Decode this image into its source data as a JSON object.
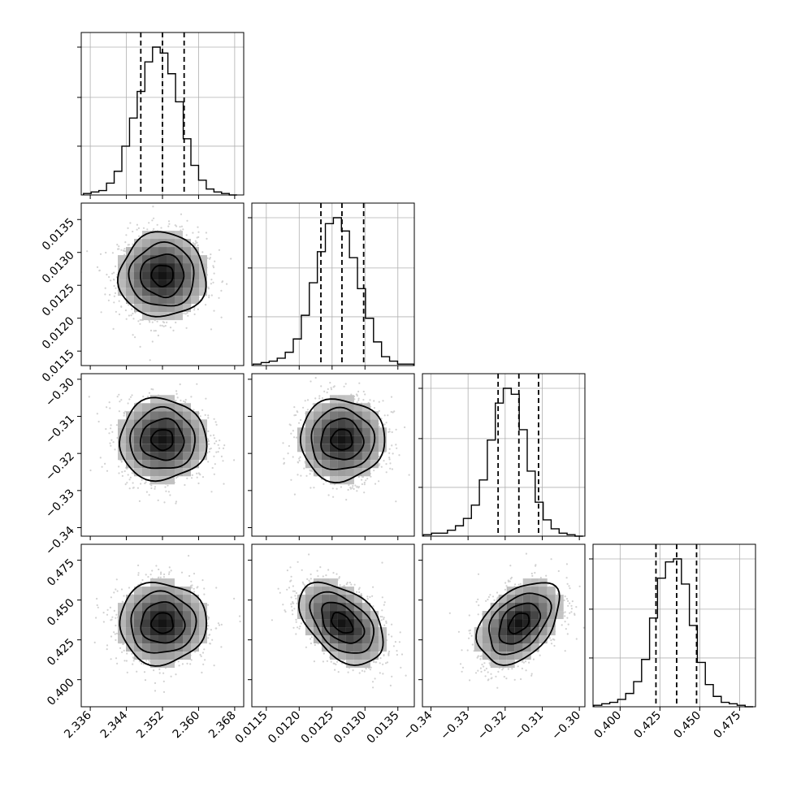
{
  "chart_data": {
    "type": "corner",
    "n_params": 4,
    "parameters": [
      {
        "range": [
          2.334,
          2.37
        ],
        "ticks": [
          "2.336",
          "2.344",
          "2.352",
          "2.360",
          "2.368"
        ],
        "tick_values": [
          2.336,
          2.344,
          2.352,
          2.36,
          2.368
        ],
        "quantiles": [
          2.3472,
          2.352,
          2.3568
        ],
        "median": 2.352,
        "sigma": 0.0048
      },
      {
        "range": [
          0.01128,
          0.01375
        ],
        "ticks": [
          "0.0115",
          "0.0120",
          "0.0125",
          "0.0130",
          "0.0135"
        ],
        "tick_values": [
          0.0115,
          0.012,
          0.0125,
          0.013,
          0.0135
        ],
        "quantiles": [
          0.01233,
          0.01265,
          0.01298
        ],
        "median": 0.01265,
        "sigma": 0.00032
      },
      {
        "range": [
          -0.3423,
          -0.2985
        ],
        "ticks": [
          "−0.34",
          "−0.33",
          "−0.32",
          "−0.31",
          "−0.30"
        ],
        "tick_values": [
          -0.34,
          -0.33,
          -0.32,
          -0.31,
          -0.3
        ],
        "quantiles": [
          -0.3219,
          -0.3163,
          -0.311
        ],
        "median": -0.3163,
        "sigma": 0.0055
      },
      {
        "range": [
          0.383,
          0.485
        ],
        "ticks": [
          "0.400",
          "0.425",
          "0.450",
          "0.475"
        ],
        "tick_values": [
          0.4,
          0.425,
          0.45,
          0.475
        ],
        "quantiles": [
          0.4225,
          0.4355,
          0.448
        ],
        "median": 0.4355,
        "sigma": 0.0128
      }
    ],
    "histograms": [
      {
        "param": 0,
        "bin_start": 2.3345,
        "bin_width": 0.0017,
        "values": [
          1,
          2,
          3,
          8,
          16,
          33,
          52,
          70,
          90,
          100,
          96,
          82,
          63,
          38,
          20,
          10,
          4,
          2,
          1,
          0
        ]
      },
      {
        "param": 1,
        "bin_start": 0.0113,
        "bin_width": 0.000122,
        "values": [
          1,
          2,
          3,
          5,
          9,
          18,
          34,
          56,
          77,
          96,
          100,
          91,
          73,
          52,
          32,
          16,
          6,
          3,
          1,
          1
        ]
      },
      {
        "param": 2,
        "bin_start": -0.342,
        "bin_width": 0.00215,
        "values": [
          1,
          2,
          2,
          4,
          7,
          12,
          21,
          38,
          65,
          90,
          100,
          96,
          72,
          44,
          23,
          11,
          5,
          2,
          1,
          0
        ]
      },
      {
        "param": 3,
        "bin_start": 0.3835,
        "bin_width": 0.005,
        "values": [
          1,
          2,
          3,
          5,
          9,
          17,
          32,
          60,
          87,
          98,
          100,
          83,
          55,
          30,
          15,
          7,
          3,
          2,
          1,
          0
        ]
      }
    ],
    "pairs": [
      {
        "x": 0,
        "y": 1,
        "correlation": 0.0
      },
      {
        "x": 0,
        "y": 2,
        "correlation": 0.0
      },
      {
        "x": 1,
        "y": 2,
        "correlation": 0.0
      },
      {
        "x": 0,
        "y": 3,
        "correlation": 0.0
      },
      {
        "x": 1,
        "y": 3,
        "correlation": -0.45
      },
      {
        "x": 2,
        "y": 3,
        "correlation": 0.42
      }
    ],
    "contour_levels_sigma": [
      0.5,
      1.0,
      1.5,
      2.0
    ],
    "quantile_style": "dashed",
    "grid": true,
    "xlabel": "",
    "ylabel": "",
    "title": ""
  }
}
